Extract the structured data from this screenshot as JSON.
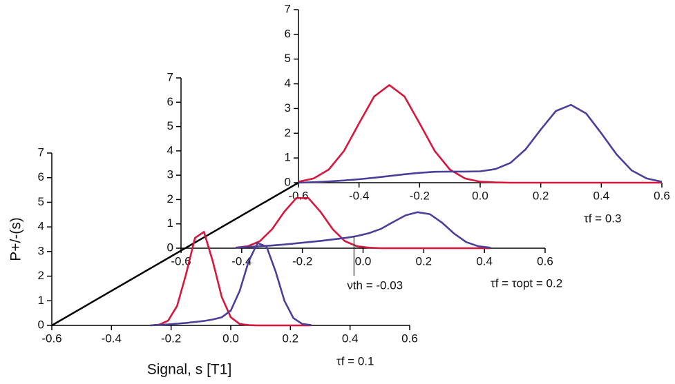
{
  "chart_data": [
    {
      "type": "line",
      "xlabel": "Signal, s [T1]",
      "ylabel": "P+/-(s)",
      "annotation": "τf = 0.1",
      "xlim": [
        -0.6,
        0.6
      ],
      "ylim": [
        0,
        7
      ],
      "xticks": [
        -0.6,
        -0.4,
        -0.2,
        {
          "value": 0,
          "label": "0.0"
        },
        0.2,
        0.4,
        0.6
      ],
      "yticks": [
        0,
        1,
        2,
        3,
        4,
        5,
        6,
        7
      ],
      "x": [
        -0.27,
        -0.24,
        -0.21,
        -0.18,
        -0.15,
        -0.12,
        -0.09,
        -0.06,
        -0.03,
        0,
        0.03,
        0.06,
        0.09,
        0.12,
        0.15,
        0.18,
        0.21,
        0.24,
        0.27
      ],
      "series": [
        {
          "color": "#d8153a",
          "values": [
            0,
            0.03,
            0.19,
            0.79,
            2.08,
            3.55,
            3.8,
            2.59,
            1.15,
            0.33,
            0.06,
            0.01,
            0,
            0,
            0,
            0,
            0,
            0,
            0
          ]
        },
        {
          "color": "#4a3f9b",
          "values": [
            0,
            0.02,
            0.04,
            0.07,
            0.1,
            0.14,
            0.18,
            0.24,
            0.33,
            0.6,
            1.4,
            2.6,
            3.35,
            3.2,
            2.2,
            1.0,
            0.3,
            0.06,
            0.01
          ]
        }
      ]
    },
    {
      "type": "line",
      "annotation": "τf = τopt = 0.2",
      "threshold": -0.03,
      "threshold_label": "νth = -0.03",
      "xlim": [
        -0.6,
        0.6
      ],
      "ylim": [
        0,
        7
      ],
      "xticks": [
        -0.6,
        -0.4,
        -0.2,
        {
          "value": 0,
          "label": "0.0"
        },
        0.2,
        0.4,
        0.6
      ],
      "yticks": [
        0,
        1,
        2,
        3,
        4,
        5,
        6,
        7
      ],
      "x": [
        -0.42,
        -0.38,
        -0.34,
        -0.3,
        -0.26,
        -0.22,
        -0.18,
        -0.14,
        -0.1,
        -0.06,
        -0.02,
        0.02,
        0.06,
        0.1,
        0.14,
        0.18,
        0.22,
        0.26,
        0.3,
        0.34,
        0.38,
        0.42
      ],
      "series": [
        {
          "color": "#d8153a",
          "values": [
            0.02,
            0.08,
            0.29,
            0.78,
            1.49,
            2.06,
            2.06,
            1.49,
            0.78,
            0.29,
            0.08,
            0.02,
            0,
            0,
            0,
            0,
            0,
            0,
            0,
            0,
            0,
            0
          ]
        },
        {
          "color": "#4a3f9b",
          "values": [
            0.02,
            0.05,
            0.08,
            0.11,
            0.15,
            0.2,
            0.25,
            0.3,
            0.36,
            0.42,
            0.5,
            0.62,
            0.8,
            1.08,
            1.35,
            1.48,
            1.4,
            1.05,
            0.6,
            0.25,
            0.08,
            0.02
          ]
        }
      ]
    },
    {
      "type": "line",
      "annotation": "τf = 0.3",
      "xlim": [
        -0.6,
        0.6
      ],
      "ylim": [
        0,
        7
      ],
      "xticks": [
        -0.6,
        -0.4,
        -0.2,
        {
          "value": 0,
          "label": "0.0"
        },
        0.2,
        0.4,
        0.6
      ],
      "yticks": [
        0,
        1,
        2,
        3,
        4,
        5,
        6,
        7
      ],
      "x": [
        -0.6,
        -0.55,
        -0.5,
        -0.45,
        -0.4,
        -0.35,
        -0.3,
        -0.25,
        -0.2,
        -0.15,
        -0.1,
        -0.05,
        0,
        0.05,
        0.1,
        0.15,
        0.2,
        0.25,
        0.3,
        0.35,
        0.4,
        0.45,
        0.5,
        0.55,
        0.6
      ],
      "series": [
        {
          "color": "#d8153a",
          "values": [
            0.04,
            0.17,
            0.53,
            1.28,
            2.4,
            3.49,
            3.95,
            3.49,
            2.4,
            1.28,
            0.53,
            0.17,
            0.04,
            0.01,
            0,
            0,
            0,
            0,
            0,
            0,
            0,
            0,
            0,
            0,
            0
          ]
        },
        {
          "color": "#4a3f9b",
          "values": [
            0,
            0.02,
            0.05,
            0.09,
            0.14,
            0.2,
            0.27,
            0.34,
            0.4,
            0.44,
            0.45,
            0.45,
            0.46,
            0.55,
            0.8,
            1.35,
            2.15,
            2.9,
            3.15,
            2.8,
            2.0,
            1.15,
            0.5,
            0.17,
            0.04
          ]
        }
      ]
    }
  ]
}
